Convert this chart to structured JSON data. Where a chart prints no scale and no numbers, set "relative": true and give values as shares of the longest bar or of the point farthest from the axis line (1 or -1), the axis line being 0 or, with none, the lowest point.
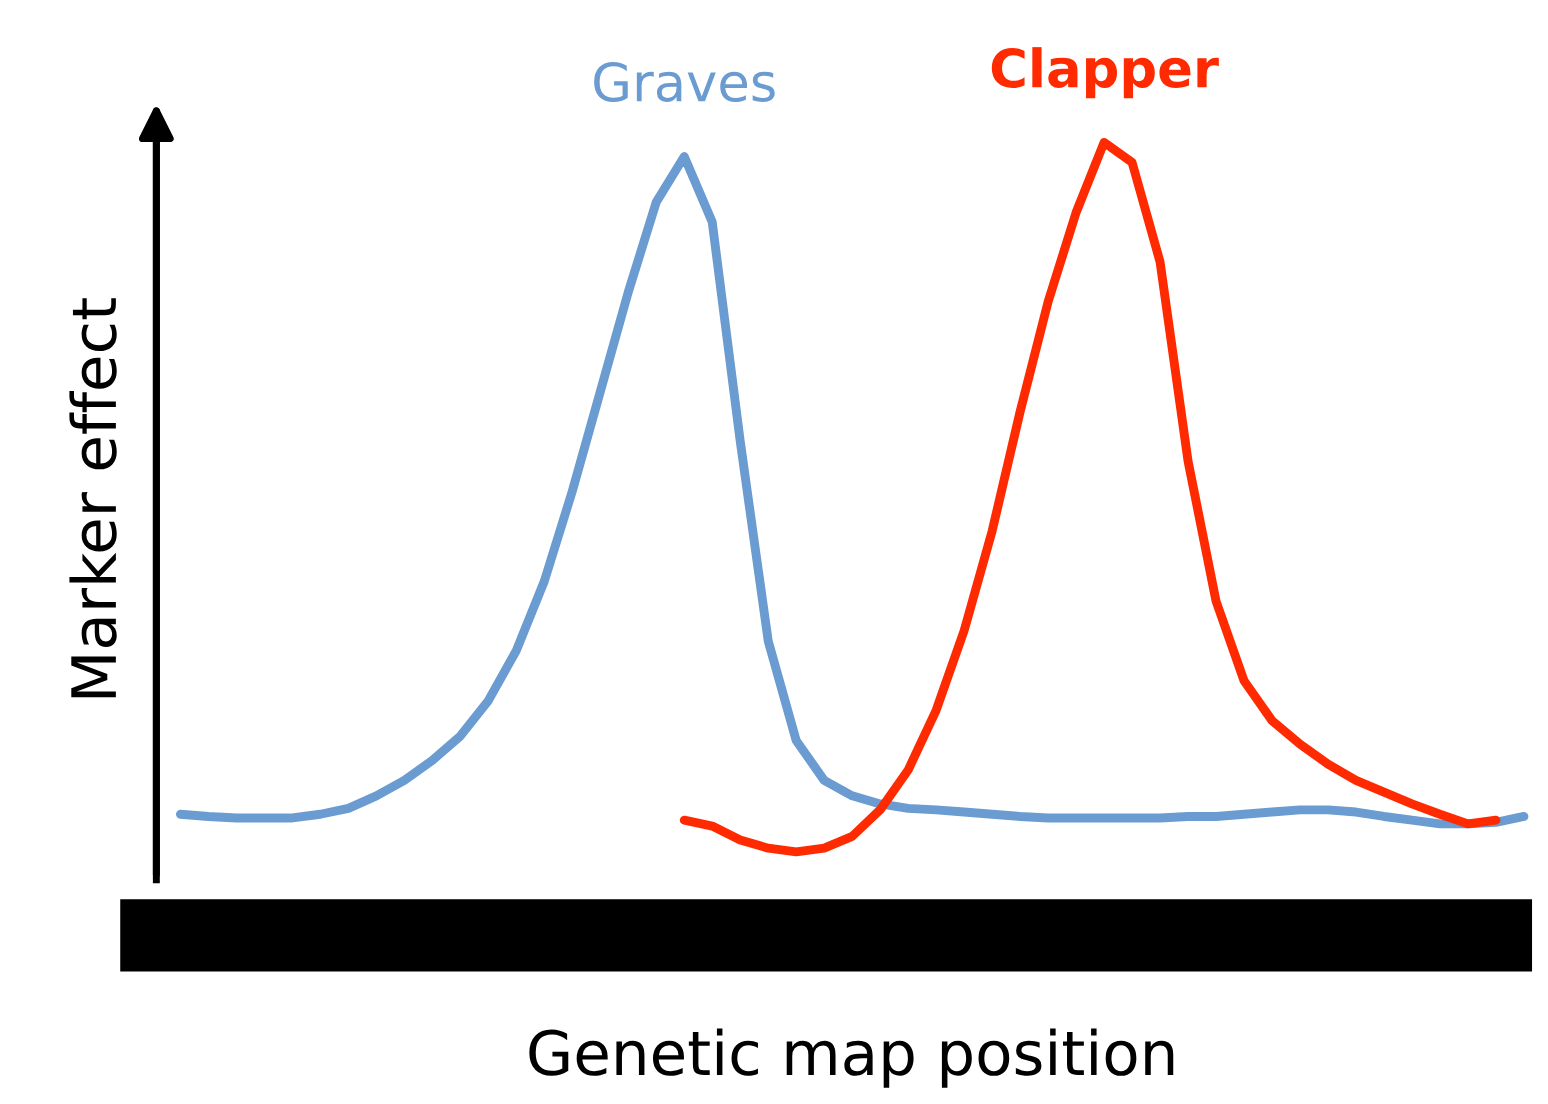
{
  "chart_data": {
    "type": "line",
    "relative": true,
    "xlabel": "Genetic map position",
    "ylabel": "Marker effect",
    "categories": [
      null,
      null,
      null,
      null,
      null,
      null,
      null,
      null,
      null,
      null,
      null,
      null,
      null,
      null,
      null,
      null,
      null,
      null,
      null,
      null,
      null,
      null,
      null,
      null,
      null,
      null,
      null,
      null,
      null,
      null,
      null,
      null,
      null,
      null,
      null,
      null,
      null,
      null,
      null,
      null,
      null,
      null,
      null,
      null,
      null,
      null,
      null,
      null,
      null
    ],
    "series": [
      {
        "name": "Graves",
        "color": "#6a9bd1",
        "values": [
          0.089,
          0.086,
          0.084,
          0.084,
          0.084,
          0.089,
          0.097,
          0.114,
          0.135,
          0.162,
          0.195,
          0.243,
          0.311,
          0.405,
          0.527,
          0.662,
          0.797,
          0.919,
          0.981,
          0.892,
          0.595,
          0.324,
          0.189,
          0.135,
          0.114,
          0.103,
          0.097,
          0.095,
          0.092,
          0.089,
          0.086,
          0.084,
          0.084,
          0.084,
          0.084,
          0.084,
          0.086,
          0.086,
          0.089,
          0.092,
          0.095,
          0.095,
          0.092,
          0.086,
          0.081,
          0.076,
          0.076,
          0.078,
          0.086
        ]
      },
      {
        "name": "Clapper",
        "color": "#ff2a00",
        "values": [
          null,
          null,
          null,
          null,
          null,
          null,
          null,
          null,
          null,
          null,
          null,
          null,
          null,
          null,
          null,
          null,
          null,
          null,
          0.081,
          0.073,
          0.054,
          0.043,
          0.038,
          0.043,
          0.059,
          0.095,
          0.149,
          0.23,
          0.338,
          0.473,
          0.635,
          0.784,
          0.905,
          1.0,
          0.973,
          0.838,
          0.568,
          0.378,
          0.27,
          0.216,
          0.184,
          0.157,
          0.135,
          0.119,
          0.103,
          0.089,
          0.076,
          0.081,
          null
        ]
      }
    ],
    "legend": false,
    "grid": false,
    "marker": "none",
    "line_style": "solid"
  }
}
